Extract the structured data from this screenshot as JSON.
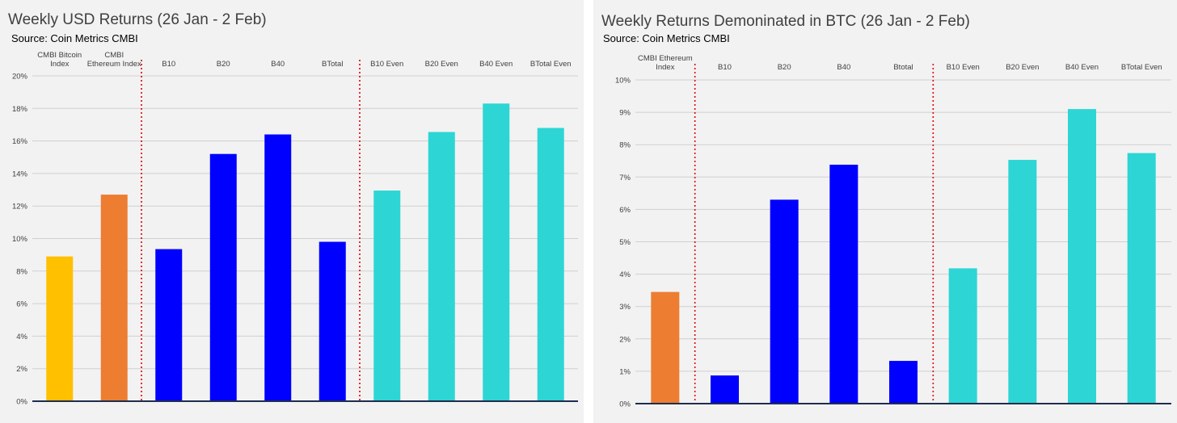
{
  "chart_data": [
    {
      "type": "bar",
      "title": "Weekly USD Returns (26 Jan - 2 Feb)",
      "subtitle": "Source: Coin Metrics CMBI",
      "categories": [
        "CMBI Bitcoin Index",
        "CMBI Ethereum Index",
        "B10",
        "B20",
        "B40",
        "BTotal",
        "B10 Even",
        "B20 Even",
        "B40 Even",
        "BTotal Even"
      ],
      "category_lines": [
        [
          "CMBI Bitcoin",
          "Index"
        ],
        [
          "CMBI",
          "Ethereum Index"
        ],
        [
          "B10"
        ],
        [
          "B20"
        ],
        [
          "B40"
        ],
        [
          "BTotal"
        ],
        [
          "B10 Even"
        ],
        [
          "B20 Even"
        ],
        [
          "B40 Even"
        ],
        [
          "BTotal Even"
        ]
      ],
      "values": [
        8.9,
        12.7,
        9.35,
        15.2,
        16.4,
        9.8,
        12.95,
        16.55,
        18.3,
        16.8
      ],
      "colors": [
        "#ffc000",
        "#ed7d31",
        "#0000ff",
        "#0000ff",
        "#0000ff",
        "#0000ff",
        "#2dd6d4",
        "#2dd6d4",
        "#2dd6d4",
        "#2dd6d4"
      ],
      "ylim": [
        0,
        20
      ],
      "yticks": [
        0,
        2,
        4,
        6,
        8,
        10,
        12,
        14,
        16,
        18,
        20
      ],
      "ytick_labels": [
        "0%",
        "2%",
        "4%",
        "6%",
        "8%",
        "10%",
        "12%",
        "14%",
        "16%",
        "18%",
        "20%"
      ],
      "dividers_after": [
        1,
        5
      ],
      "grid": true
    },
    {
      "type": "bar",
      "title": "Weekly Returns Demoninated in BTC (26 Jan - 2 Feb)",
      "subtitle": "Source: Coin Metrics CMBI",
      "categories": [
        "CMBI Ethereum Index",
        "B10",
        "B20",
        "B40",
        "Btotal",
        "B10 Even",
        "B20 Even",
        "B40 Even",
        "BTotal Even"
      ],
      "category_lines": [
        [
          "CMBI Ethereum",
          "Index"
        ],
        [
          "B10"
        ],
        [
          "B20"
        ],
        [
          "B40"
        ],
        [
          "Btotal"
        ],
        [
          "B10 Even"
        ],
        [
          "B20 Even"
        ],
        [
          "B40 Even"
        ],
        [
          "BTotal Even"
        ]
      ],
      "values": [
        3.45,
        0.87,
        6.3,
        7.38,
        1.32,
        4.18,
        7.53,
        9.1,
        7.74
      ],
      "colors": [
        "#ed7d31",
        "#0000ff",
        "#0000ff",
        "#0000ff",
        "#0000ff",
        "#2dd6d4",
        "#2dd6d4",
        "#2dd6d4",
        "#2dd6d4"
      ],
      "ylim": [
        0,
        10
      ],
      "yticks": [
        0,
        1,
        2,
        3,
        4,
        5,
        6,
        7,
        8,
        9,
        10
      ],
      "ytick_labels": [
        "0%",
        "1%",
        "2%",
        "3%",
        "4%",
        "5%",
        "6%",
        "7%",
        "8%",
        "9%",
        "10%"
      ],
      "dividers_after": [
        0,
        4
      ],
      "grid": true
    }
  ]
}
